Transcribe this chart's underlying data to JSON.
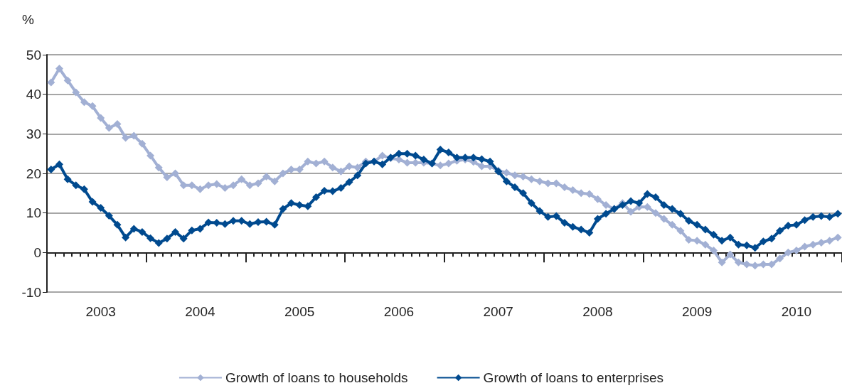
{
  "chart_data": {
    "type": "line",
    "ylabel": "%",
    "categories": [
      null,
      null,
      null,
      null,
      null,
      null,
      "2003",
      null,
      null,
      null,
      null,
      null,
      null,
      null,
      null,
      null,
      null,
      null,
      "2004",
      null,
      null,
      null,
      null,
      null,
      null,
      null,
      null,
      null,
      null,
      null,
      "2005",
      null,
      null,
      null,
      null,
      null,
      null,
      null,
      null,
      null,
      null,
      null,
      "2006",
      null,
      null,
      null,
      null,
      null,
      null,
      null,
      null,
      null,
      null,
      null,
      "2007",
      null,
      null,
      null,
      null,
      null,
      null,
      null,
      null,
      null,
      null,
      null,
      "2008",
      null,
      null,
      null,
      null,
      null,
      null,
      null,
      null,
      null,
      null,
      null,
      "2009",
      null,
      null,
      null,
      null,
      null,
      null,
      null,
      null,
      null,
      null,
      null,
      "2010",
      null,
      null,
      null,
      null,
      null
    ],
    "series": [
      {
        "name": "Growth of loans to households",
        "color": "#a2b0d4",
        "values": [
          43,
          46.5,
          43.5,
          40.5,
          38,
          37,
          34,
          31.5,
          32.5,
          29,
          29.5,
          27.5,
          24.5,
          21.5,
          19,
          20,
          17,
          17,
          16,
          17,
          17.3,
          16.3,
          17,
          18.5,
          17,
          17.5,
          19.2,
          18,
          20,
          21,
          21,
          23,
          22.5,
          23,
          21.5,
          20.5,
          21.8,
          21.5,
          23,
          23,
          24.5,
          23.8,
          23.5,
          22.7,
          22.7,
          22.7,
          22.5,
          22,
          22.5,
          23.2,
          23.5,
          22.9,
          21.8,
          21.8,
          20.7,
          20.2,
          19.5,
          19.2,
          18.5,
          18,
          17.5,
          17.5,
          16.5,
          15.8,
          15,
          14.8,
          13.5,
          12,
          11,
          12.5,
          10.3,
          11.5,
          11.5,
          10,
          8.5,
          7,
          5.5,
          3.2,
          3,
          2,
          0.5,
          -2.5,
          -0.5,
          -2.5,
          -3,
          -3.3,
          -3,
          -3,
          -1.5,
          0,
          0.5,
          1.5,
          2,
          2.5,
          3,
          3.8
        ]
      },
      {
        "name": "Growth of loans to enterprises",
        "color": "#004a8f",
        "values": [
          21,
          22.3,
          18.5,
          17,
          16,
          12.8,
          11.3,
          9.3,
          7,
          3.8,
          6,
          5.2,
          3.6,
          2.4,
          3.5,
          5.2,
          3.5,
          5.6,
          6,
          7.6,
          7.5,
          7.2,
          8,
          8,
          7.2,
          7.7,
          7.8,
          7,
          11,
          12.5,
          12,
          11.7,
          14,
          15.6,
          15.5,
          16.3,
          17.8,
          19.5,
          22.5,
          23,
          22.3,
          24,
          25,
          25,
          24.5,
          23.5,
          22.5,
          26,
          25.3,
          24,
          24,
          24,
          23.6,
          23,
          20.5,
          18,
          16.5,
          15,
          12.5,
          10.5,
          9,
          9.2,
          7.5,
          6.5,
          5.8,
          5,
          8.5,
          9.8,
          11,
          12,
          13,
          12.5,
          14.8,
          14,
          12,
          11,
          9.8,
          8,
          7,
          5.8,
          4.5,
          3,
          3.8,
          2,
          1.8,
          1.2,
          2.8,
          3.5,
          5.5,
          6.8,
          7,
          8.2,
          9,
          9.2,
          9,
          9.8
        ]
      }
    ],
    "ylim": [
      -10,
      50
    ],
    "yticks": [
      -10,
      0,
      10,
      20,
      30,
      40,
      50
    ],
    "grid": "y",
    "legend": "bottom",
    "marker": "diamond",
    "line_style": "solid"
  }
}
